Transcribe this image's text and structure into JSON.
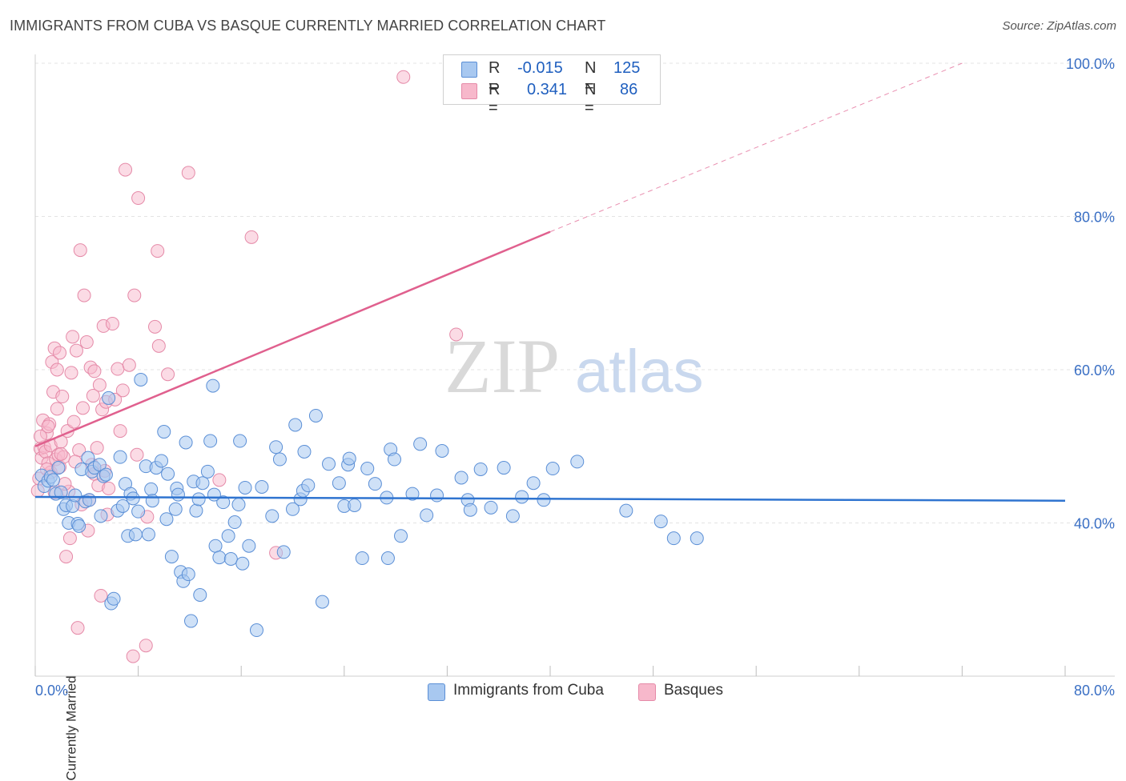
{
  "title": "IMMIGRANTS FROM CUBA VS BASQUE CURRENTLY MARRIED CORRELATION CHART",
  "source": "Source: ZipAtlas.com",
  "watermark": {
    "zip": "ZIP",
    "atlas": "atlas"
  },
  "stats": {
    "r_label": "R =",
    "n_label": "N =",
    "cuba": {
      "r": "-0.015",
      "n": "125"
    },
    "basque": {
      "r": "0.341",
      "n": "86"
    }
  },
  "legend": {
    "cuba": "Immigrants from Cuba",
    "basque": "Basques"
  },
  "colors": {
    "cuba_fill": "#a8c8f0",
    "cuba_stroke": "#5b8fd6",
    "cuba_line": "#2f74d0",
    "basque_fill": "#f7b8cb",
    "basque_stroke": "#e58aa8",
    "basque_line": "#e0608e",
    "tick_text": "#3a6fc4",
    "grid": "#e3e3e3"
  },
  "chart_data": {
    "type": "scatter",
    "title": "IMMIGRANTS FROM CUBA VS BASQUE CURRENTLY MARRIED CORRELATION CHART",
    "xlabel": "",
    "ylabel": "Currently Married",
    "xlim": [
      0,
      80
    ],
    "ylim": [
      20,
      100
    ],
    "x_tick_labels": [
      "0.0%",
      "80.0%"
    ],
    "y_tick_labels": [
      "40.0%",
      "60.0%",
      "80.0%",
      "100.0%"
    ],
    "y_ticks": [
      40,
      60,
      80,
      100
    ],
    "grid": true,
    "legend_position": "bottom",
    "series": [
      {
        "name": "Immigrants from Cuba",
        "trend": {
          "x0": 0,
          "y0": 43.4,
          "x1": 80,
          "y1": 42.9
        },
        "points": [
          [
            0.5,
            46.2
          ],
          [
            0.7,
            44.8
          ],
          [
            1.0,
            45.5
          ],
          [
            1.2,
            46.0
          ],
          [
            1.4,
            45.6
          ],
          [
            1.6,
            43.8
          ],
          [
            1.8,
            47.2
          ],
          [
            2.0,
            44.0
          ],
          [
            2.2,
            41.8
          ],
          [
            2.4,
            42.3
          ],
          [
            2.6,
            40.0
          ],
          [
            2.9,
            42.2
          ],
          [
            3.1,
            43.6
          ],
          [
            3.3,
            39.9
          ],
          [
            3.4,
            39.6
          ],
          [
            3.6,
            47.0
          ],
          [
            3.9,
            42.8
          ],
          [
            4.1,
            48.5
          ],
          [
            4.2,
            43.0
          ],
          [
            4.4,
            46.7
          ],
          [
            4.6,
            47.2
          ],
          [
            5.0,
            47.6
          ],
          [
            5.1,
            40.9
          ],
          [
            5.3,
            46.1
          ],
          [
            5.5,
            46.3
          ],
          [
            5.7,
            56.3
          ],
          [
            5.9,
            29.5
          ],
          [
            6.1,
            30.1
          ],
          [
            6.4,
            41.6
          ],
          [
            6.6,
            48.6
          ],
          [
            6.8,
            42.2
          ],
          [
            7.0,
            45.1
          ],
          [
            7.2,
            38.3
          ],
          [
            7.4,
            43.8
          ],
          [
            7.6,
            43.2
          ],
          [
            7.8,
            38.5
          ],
          [
            8.0,
            41.5
          ],
          [
            8.2,
            58.7
          ],
          [
            8.6,
            47.4
          ],
          [
            8.8,
            38.5
          ],
          [
            9.0,
            44.4
          ],
          [
            9.1,
            42.9
          ],
          [
            9.4,
            47.2
          ],
          [
            9.8,
            48.1
          ],
          [
            10.0,
            51.9
          ],
          [
            10.2,
            40.5
          ],
          [
            10.3,
            46.4
          ],
          [
            10.6,
            35.6
          ],
          [
            10.9,
            41.8
          ],
          [
            11.0,
            44.5
          ],
          [
            11.3,
            33.6
          ],
          [
            11.5,
            32.4
          ],
          [
            11.7,
            50.5
          ],
          [
            11.9,
            33.3
          ],
          [
            12.1,
            27.2
          ],
          [
            12.3,
            45.4
          ],
          [
            12.5,
            41.6
          ],
          [
            12.7,
            43.1
          ],
          [
            12.8,
            30.6
          ],
          [
            13.0,
            45.2
          ],
          [
            13.4,
            46.7
          ],
          [
            13.6,
            50.7
          ],
          [
            13.8,
            57.9
          ],
          [
            14.0,
            37.0
          ],
          [
            14.3,
            35.5
          ],
          [
            14.6,
            42.7
          ],
          [
            15.0,
            38.3
          ],
          [
            15.2,
            35.3
          ],
          [
            15.5,
            40.1
          ],
          [
            15.8,
            42.4
          ],
          [
            15.9,
            50.7
          ],
          [
            16.1,
            34.7
          ],
          [
            16.3,
            44.6
          ],
          [
            16.6,
            37.0
          ],
          [
            17.2,
            26.0
          ],
          [
            17.6,
            44.7
          ],
          [
            18.4,
            40.9
          ],
          [
            18.7,
            49.9
          ],
          [
            19.0,
            48.3
          ],
          [
            19.3,
            36.2
          ],
          [
            20.0,
            41.8
          ],
          [
            20.2,
            52.8
          ],
          [
            20.6,
            43.1
          ],
          [
            20.8,
            44.2
          ],
          [
            20.9,
            49.3
          ],
          [
            21.2,
            44.9
          ],
          [
            21.8,
            54.0
          ],
          [
            22.3,
            29.7
          ],
          [
            22.8,
            47.7
          ],
          [
            23.6,
            45.2
          ],
          [
            24.0,
            42.2
          ],
          [
            24.3,
            47.6
          ],
          [
            24.4,
            48.4
          ],
          [
            24.8,
            42.3
          ],
          [
            25.4,
            35.4
          ],
          [
            25.8,
            47.1
          ],
          [
            26.4,
            45.1
          ],
          [
            27.4,
            35.4
          ],
          [
            27.6,
            49.6
          ],
          [
            27.9,
            48.3
          ],
          [
            28.4,
            38.3
          ],
          [
            29.3,
            43.8
          ],
          [
            29.9,
            50.3
          ],
          [
            30.4,
            41.0
          ],
          [
            31.6,
            49.4
          ],
          [
            33.1,
            45.9
          ],
          [
            33.6,
            43.0
          ],
          [
            33.8,
            41.7
          ],
          [
            34.6,
            47.0
          ],
          [
            35.4,
            42.0
          ],
          [
            36.4,
            47.2
          ],
          [
            37.1,
            40.9
          ],
          [
            37.8,
            43.4
          ],
          [
            38.7,
            45.2
          ],
          [
            39.5,
            43.0
          ],
          [
            40.2,
            47.1
          ],
          [
            42.1,
            48.0
          ],
          [
            45.9,
            41.6
          ],
          [
            48.6,
            40.2
          ],
          [
            49.6,
            38.0
          ],
          [
            51.4,
            38.0
          ],
          [
            11.1,
            43.7
          ],
          [
            13.9,
            43.7
          ],
          [
            27.3,
            43.3
          ],
          [
            31.2,
            43.6
          ]
        ]
      },
      {
        "name": "Basques",
        "trend": {
          "x0": 0,
          "y0": 50.0,
          "x1": 40,
          "y1": 78.0,
          "dash_to": {
            "x": 72,
            "y": 100
          }
        },
        "points": [
          [
            0.2,
            44.2
          ],
          [
            0.3,
            45.8
          ],
          [
            0.4,
            49.7
          ],
          [
            0.5,
            48.5
          ],
          [
            0.6,
            53.4
          ],
          [
            0.7,
            49.9
          ],
          [
            0.8,
            49.3
          ],
          [
            0.9,
            51.7
          ],
          [
            1.0,
            47.8
          ],
          [
            1.1,
            52.9
          ],
          [
            1.2,
            46.6
          ],
          [
            1.2,
            50.1
          ],
          [
            1.3,
            61.0
          ],
          [
            1.4,
            57.1
          ],
          [
            1.5,
            62.8
          ],
          [
            1.6,
            48.3
          ],
          [
            1.7,
            60.0
          ],
          [
            1.7,
            54.9
          ],
          [
            1.8,
            48.9
          ],
          [
            1.9,
            47.3
          ],
          [
            1.9,
            62.2
          ],
          [
            2.0,
            50.6
          ],
          [
            2.1,
            56.5
          ],
          [
            2.2,
            48.6
          ],
          [
            2.4,
            35.6
          ],
          [
            2.5,
            52.0
          ],
          [
            2.6,
            44.1
          ],
          [
            2.7,
            38.0
          ],
          [
            2.8,
            59.6
          ],
          [
            2.9,
            64.3
          ],
          [
            3.0,
            53.2
          ],
          [
            3.2,
            62.5
          ],
          [
            3.3,
            26.3
          ],
          [
            3.4,
            49.5
          ],
          [
            3.5,
            75.6
          ],
          [
            3.6,
            42.4
          ],
          [
            3.8,
            69.7
          ],
          [
            4.0,
            63.6
          ],
          [
            4.1,
            39.0
          ],
          [
            4.3,
            60.3
          ],
          [
            4.4,
            47.6
          ],
          [
            4.5,
            56.6
          ],
          [
            4.6,
            46.4
          ],
          [
            4.6,
            59.8
          ],
          [
            4.8,
            49.8
          ],
          [
            4.9,
            44.9
          ],
          [
            5.1,
            30.5
          ],
          [
            5.2,
            54.8
          ],
          [
            5.3,
            65.7
          ],
          [
            5.4,
            46.8
          ],
          [
            5.5,
            55.8
          ],
          [
            5.6,
            41.1
          ],
          [
            5.7,
            44.5
          ],
          [
            6.0,
            66.0
          ],
          [
            6.2,
            56.1
          ],
          [
            6.4,
            60.1
          ],
          [
            6.6,
            52.0
          ],
          [
            7.0,
            86.1
          ],
          [
            7.3,
            60.6
          ],
          [
            7.6,
            22.6
          ],
          [
            7.7,
            69.7
          ],
          [
            8.0,
            82.4
          ],
          [
            8.6,
            24.0
          ],
          [
            8.7,
            40.8
          ],
          [
            9.3,
            65.6
          ],
          [
            9.5,
            75.5
          ],
          [
            9.6,
            63.1
          ],
          [
            10.3,
            59.4
          ],
          [
            11.9,
            85.7
          ],
          [
            14.3,
            45.6
          ],
          [
            16.8,
            77.3
          ],
          [
            18.7,
            36.1
          ],
          [
            28.6,
            98.2
          ],
          [
            32.7,
            64.6
          ],
          [
            0.4,
            51.3
          ],
          [
            1.0,
            52.6
          ],
          [
            2.3,
            45.1
          ],
          [
            3.1,
            48.0
          ],
          [
            4.2,
            43.0
          ],
          [
            5.0,
            58.0
          ],
          [
            6.8,
            57.3
          ],
          [
            7.9,
            48.9
          ],
          [
            2.0,
            49.0
          ],
          [
            0.9,
            47.0
          ],
          [
            3.7,
            55.0
          ],
          [
            1.5,
            44.0
          ]
        ]
      }
    ]
  }
}
